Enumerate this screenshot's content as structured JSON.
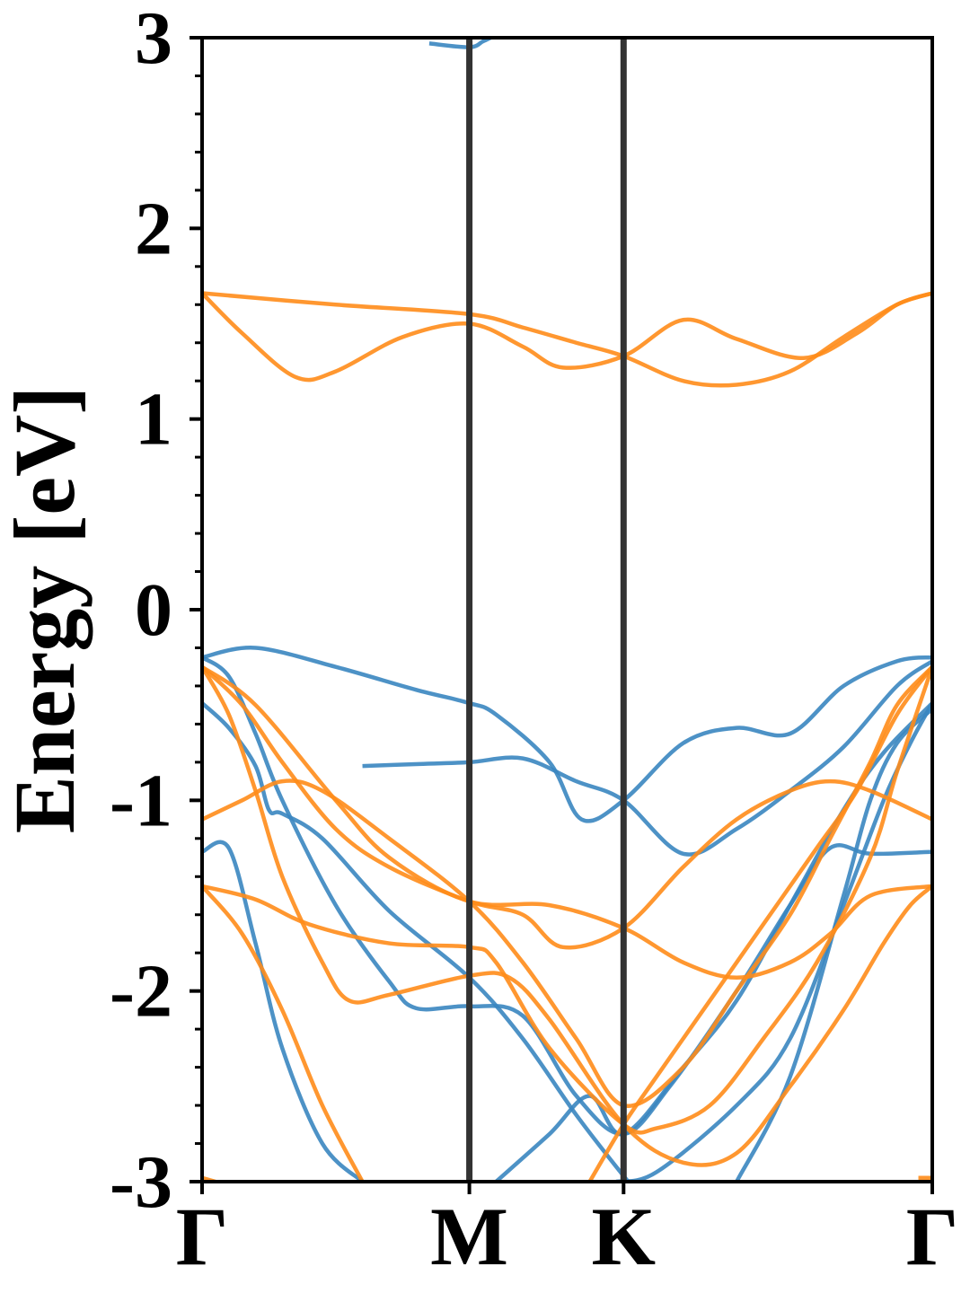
{
  "chart_data": {
    "type": "line",
    "title": "",
    "xlabel": "",
    "ylabel": "Energy [eV]",
    "ylim": [
      -3,
      3
    ],
    "yticks": [
      -3,
      -2,
      -1,
      0,
      1,
      2,
      3
    ],
    "y_minor_step": 0.2,
    "grid": false,
    "legend": "none",
    "kpath": [
      {
        "label": "Γ",
        "pos": 0.0
      },
      {
        "label": "M",
        "pos": 1.0
      },
      {
        "label": "K",
        "pos": 1.577
      },
      {
        "label": "Γ",
        "pos": 2.732
      }
    ],
    "colors": {
      "blue": "#3a86c0",
      "orange": "#ff8c1a",
      "kline": "#333333"
    },
    "series": [
      {
        "color": "blue",
        "points": [
          [
            0,
            -0.25
          ],
          [
            0.2,
            -0.2
          ],
          [
            0.5,
            -0.3
          ],
          [
            0.8,
            -0.42
          ],
          [
            1.0,
            -0.49
          ],
          [
            1.1,
            -0.55
          ],
          [
            1.3,
            -0.8
          ],
          [
            1.42,
            -1.1
          ],
          [
            1.577,
            -1.0
          ],
          [
            1.8,
            -0.7
          ],
          [
            2.0,
            -0.62
          ],
          [
            2.2,
            -0.65
          ],
          [
            2.4,
            -0.4
          ],
          [
            2.6,
            -0.27
          ],
          [
            2.732,
            -0.25
          ]
        ]
      },
      {
        "color": "blue",
        "points": [
          [
            0,
            -0.49
          ],
          [
            0.1,
            -0.62
          ],
          [
            0.2,
            -0.82
          ],
          [
            0.25,
            -1.05
          ],
          [
            0.3,
            -1.07
          ],
          [
            0.45,
            -1.2
          ],
          [
            0.7,
            -1.58
          ],
          [
            1.0,
            -1.93
          ],
          [
            1.2,
            -2.25
          ],
          [
            1.4,
            -2.65
          ],
          [
            1.577,
            -2.97
          ],
          [
            1.6,
            -3.0
          ]
        ]
      },
      {
        "color": "blue",
        "points": [
          [
            0,
            -1.27
          ],
          [
            0.1,
            -1.25
          ],
          [
            0.2,
            -1.75
          ],
          [
            0.3,
            -2.3
          ],
          [
            0.45,
            -2.8
          ],
          [
            0.6,
            -3.0
          ]
        ]
      },
      {
        "color": "blue",
        "points": [
          [
            0,
            -0.25
          ],
          [
            0.1,
            -0.35
          ],
          [
            0.2,
            -0.65
          ],
          [
            0.3,
            -1.0
          ],
          [
            0.5,
            -1.55
          ],
          [
            0.7,
            -1.95
          ],
          [
            0.8,
            -2.09
          ],
          [
            1.0,
            -2.08
          ],
          [
            1.2,
            -2.13
          ],
          [
            1.4,
            -2.55
          ],
          [
            1.577,
            -2.75
          ],
          [
            1.75,
            -2.5
          ],
          [
            2.0,
            -2.0
          ],
          [
            2.2,
            -1.55
          ],
          [
            2.35,
            -1.25
          ],
          [
            2.5,
            -1.28
          ],
          [
            2.732,
            -1.27
          ]
        ]
      },
      {
        "color": "blue",
        "points": [
          [
            0.6,
            -0.82
          ],
          [
            0.8,
            -0.81
          ],
          [
            1.0,
            -0.8
          ],
          [
            1.2,
            -0.78
          ],
          [
            1.4,
            -0.9
          ],
          [
            1.577,
            -1.0
          ],
          [
            1.8,
            -1.28
          ],
          [
            2.0,
            -1.15
          ],
          [
            2.2,
            -0.95
          ],
          [
            2.4,
            -0.72
          ],
          [
            2.6,
            -0.4
          ],
          [
            2.732,
            -0.27
          ]
        ]
      },
      {
        "color": "blue",
        "points": [
          [
            1.1,
            -3.0
          ],
          [
            1.3,
            -2.75
          ],
          [
            1.45,
            -2.55
          ],
          [
            1.577,
            -2.75
          ],
          [
            1.8,
            -2.4
          ],
          [
            2.0,
            -2.05
          ],
          [
            2.2,
            -1.55
          ],
          [
            2.4,
            -1.05
          ],
          [
            2.55,
            -0.75
          ],
          [
            2.732,
            -0.49
          ]
        ]
      },
      {
        "color": "blue",
        "points": [
          [
            1.55,
            -3.0
          ],
          [
            1.7,
            -2.95
          ],
          [
            2.0,
            -2.6
          ],
          [
            2.2,
            -2.25
          ],
          [
            2.4,
            -1.55
          ],
          [
            2.55,
            -1.0
          ],
          [
            2.65,
            -0.7
          ],
          [
            2.732,
            -0.49
          ]
        ]
      },
      {
        "color": "blue",
        "points": [
          [
            2.0,
            -3.0
          ],
          [
            2.2,
            -2.45
          ],
          [
            2.4,
            -1.5
          ],
          [
            2.5,
            -1.0
          ],
          [
            2.6,
            -0.7
          ],
          [
            2.732,
            -0.52
          ]
        ]
      },
      {
        "color": "blue",
        "points": [
          [
            0.85,
            2.97
          ],
          [
            1.0,
            2.95
          ],
          [
            1.05,
            2.98
          ],
          [
            1.08,
            3.0
          ]
        ]
      },
      {
        "color": "orange",
        "points": [
          [
            0,
            1.66
          ],
          [
            0.5,
            1.6
          ],
          [
            1.0,
            1.55
          ],
          [
            1.2,
            1.48
          ],
          [
            1.4,
            1.4
          ],
          [
            1.577,
            1.33
          ],
          [
            1.8,
            1.2
          ],
          [
            2.0,
            1.18
          ],
          [
            2.2,
            1.25
          ],
          [
            2.4,
            1.43
          ],
          [
            2.6,
            1.6
          ],
          [
            2.732,
            1.66
          ]
        ]
      },
      {
        "color": "orange",
        "points": [
          [
            0,
            1.66
          ],
          [
            0.15,
            1.45
          ],
          [
            0.35,
            1.22
          ],
          [
            0.5,
            1.25
          ],
          [
            0.75,
            1.43
          ],
          [
            1.0,
            1.5
          ],
          [
            1.2,
            1.38
          ],
          [
            1.35,
            1.27
          ],
          [
            1.577,
            1.33
          ],
          [
            1.8,
            1.52
          ],
          [
            2.0,
            1.42
          ],
          [
            2.25,
            1.32
          ],
          [
            2.45,
            1.45
          ],
          [
            2.6,
            1.6
          ],
          [
            2.732,
            1.66
          ]
        ]
      },
      {
        "color": "orange",
        "points": [
          [
            0,
            -0.3
          ],
          [
            0.2,
            -0.5
          ],
          [
            0.5,
            -1.0
          ],
          [
            0.7,
            -1.3
          ],
          [
            1.0,
            -1.53
          ],
          [
            1.3,
            -1.55
          ],
          [
            1.577,
            -1.67
          ],
          [
            1.8,
            -1.85
          ],
          [
            2.0,
            -1.93
          ],
          [
            2.2,
            -1.85
          ],
          [
            2.35,
            -1.7
          ],
          [
            2.5,
            -1.5
          ],
          [
            2.732,
            -1.45
          ]
        ]
      },
      {
        "color": "orange",
        "points": [
          [
            0,
            -0.3
          ],
          [
            0.15,
            -0.5
          ],
          [
            0.3,
            -0.8
          ],
          [
            0.5,
            -1.15
          ],
          [
            0.7,
            -1.35
          ],
          [
            1.0,
            -1.53
          ],
          [
            1.2,
            -1.6
          ],
          [
            1.35,
            -1.77
          ],
          [
            1.577,
            -1.67
          ],
          [
            1.8,
            -1.35
          ],
          [
            2.0,
            -1.1
          ],
          [
            2.2,
            -0.95
          ],
          [
            2.35,
            -0.9
          ],
          [
            2.5,
            -0.95
          ],
          [
            2.732,
            -1.1
          ]
        ]
      },
      {
        "color": "orange",
        "points": [
          [
            0,
            -1.1
          ],
          [
            0.15,
            -1.0
          ],
          [
            0.3,
            -0.9
          ],
          [
            0.45,
            -0.95
          ],
          [
            0.7,
            -1.2
          ],
          [
            1.0,
            -1.53
          ],
          [
            1.2,
            -1.85
          ],
          [
            1.4,
            -2.25
          ],
          [
            1.577,
            -2.6
          ],
          [
            1.8,
            -2.4
          ],
          [
            2.0,
            -2.0
          ],
          [
            2.2,
            -1.6
          ],
          [
            2.35,
            -1.2
          ],
          [
            2.5,
            -0.8
          ],
          [
            2.6,
            -0.5
          ],
          [
            2.732,
            -0.3
          ]
        ]
      },
      {
        "color": "orange",
        "points": [
          [
            0,
            -1.45
          ],
          [
            0.2,
            -1.52
          ],
          [
            0.4,
            -1.65
          ],
          [
            0.7,
            -1.75
          ],
          [
            1.0,
            -1.77
          ],
          [
            1.1,
            -1.85
          ],
          [
            1.3,
            -2.3
          ],
          [
            1.577,
            -2.7
          ],
          [
            1.7,
            -2.72
          ],
          [
            1.9,
            -2.6
          ],
          [
            2.1,
            -2.25
          ],
          [
            2.3,
            -1.85
          ],
          [
            2.5,
            -1.3
          ],
          [
            2.6,
            -0.85
          ],
          [
            2.732,
            -0.3
          ]
        ]
      },
      {
        "color": "orange",
        "points": [
          [
            0,
            -0.3
          ],
          [
            0.1,
            -0.55
          ],
          [
            0.2,
            -0.95
          ],
          [
            0.3,
            -1.4
          ],
          [
            0.45,
            -1.85
          ],
          [
            0.55,
            -2.05
          ],
          [
            0.7,
            -2.02
          ],
          [
            1.0,
            -1.92
          ],
          [
            1.15,
            -1.93
          ],
          [
            1.3,
            -2.15
          ],
          [
            1.577,
            -2.7
          ],
          [
            1.8,
            -2.9
          ],
          [
            2.0,
            -2.85
          ],
          [
            2.2,
            -2.5
          ],
          [
            2.4,
            -2.1
          ],
          [
            2.55,
            -1.75
          ],
          [
            2.65,
            -1.55
          ],
          [
            2.732,
            -1.45
          ]
        ]
      },
      {
        "color": "orange",
        "points": [
          [
            0,
            -1.45
          ],
          [
            0.15,
            -1.7
          ],
          [
            0.3,
            -2.1
          ],
          [
            0.45,
            -2.6
          ],
          [
            0.6,
            -3.0
          ]
        ]
      },
      {
        "color": "orange",
        "points": [
          [
            0,
            -2.98
          ],
          [
            0.05,
            -3.0
          ]
        ]
      },
      {
        "color": "orange",
        "points": [
          [
            2.68,
            -2.98
          ],
          [
            2.732,
            -2.98
          ]
        ]
      },
      {
        "color": "orange",
        "points": [
          [
            1.45,
            -3.0
          ],
          [
            1.577,
            -2.7
          ],
          [
            1.7,
            -2.45
          ],
          [
            1.9,
            -2.05
          ],
          [
            2.1,
            -1.65
          ],
          [
            2.3,
            -1.25
          ],
          [
            2.45,
            -0.95
          ],
          [
            2.6,
            -0.55
          ],
          [
            2.732,
            -0.3
          ]
        ]
      }
    ]
  }
}
